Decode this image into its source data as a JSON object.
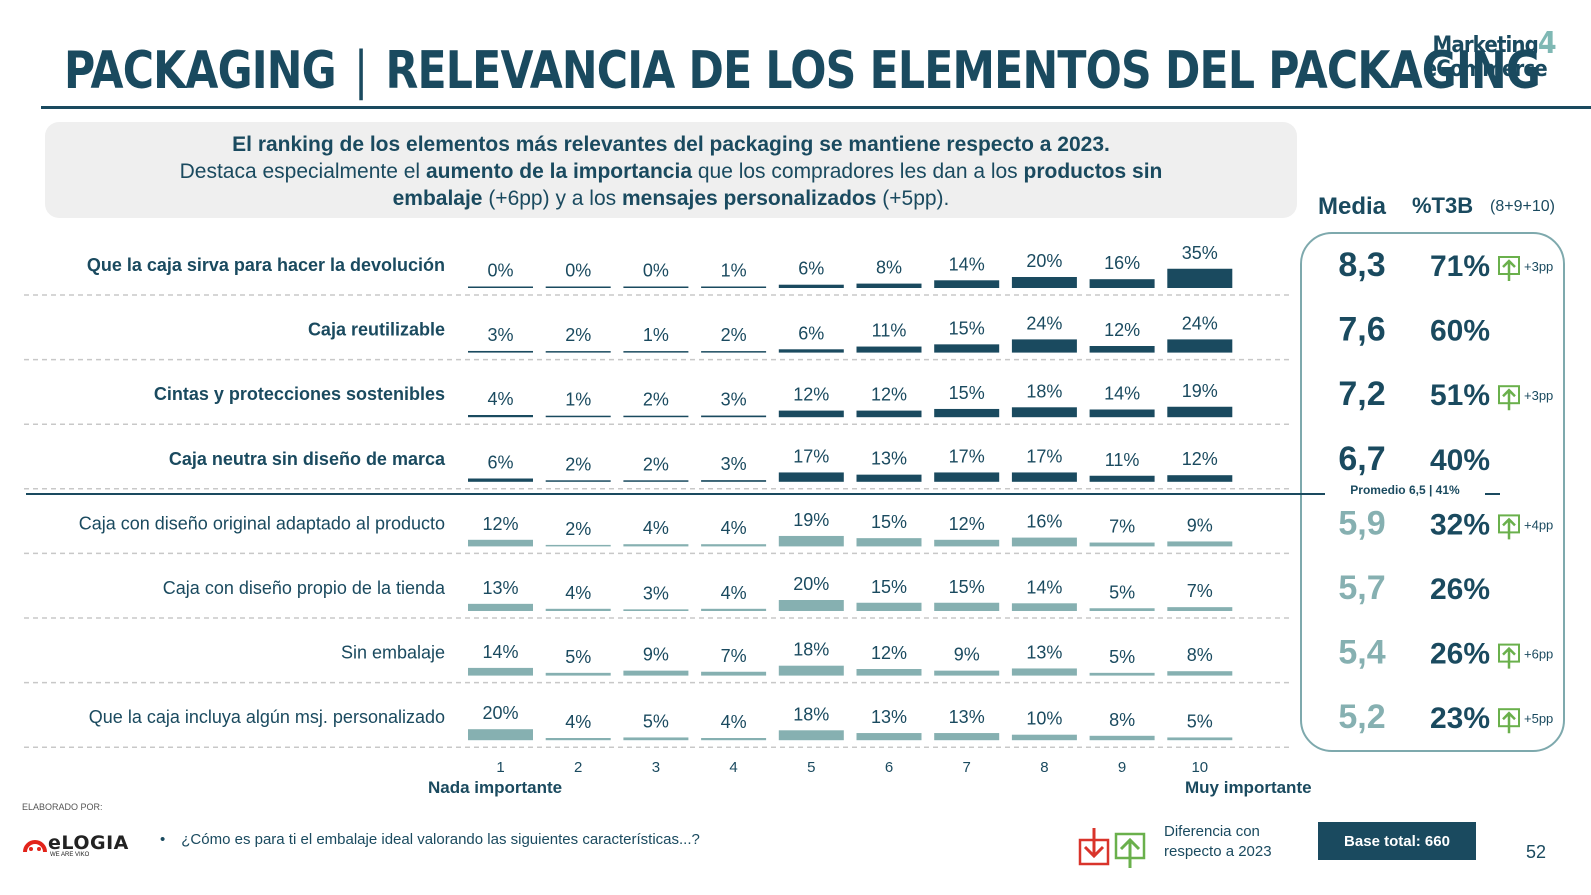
{
  "header": {
    "title_left": "PACKAGING",
    "title_sep": "|",
    "title_right": "RELEVANCIA DE LOS ELEMENTOS DEL PACKAGING",
    "logo_line1": "Marketing",
    "logo_line2": "eCommerce",
    "logo_mark": "4"
  },
  "summary": {
    "line1": "El ranking de los elementos más relevantes del packaging se mantiene respecto a 2023.",
    "line2_a": "Destaca especialmente el ",
    "line2_b": "aumento de la importancia",
    "line2_c": " que los compradores les dan a los ",
    "line2_d": "productos sin",
    "line3_a": "embalaje",
    "line3_b": " (+6pp) y a los ",
    "line3_c": "mensajes personalizados",
    "line3_d": " (+5pp)."
  },
  "columns_header": {
    "media": "Media",
    "t3b": "%T3B",
    "t3b_sub": "(8+9+10)"
  },
  "chart_data": {
    "type": "bar",
    "categories": [
      "1",
      "2",
      "3",
      "4",
      "5",
      "6",
      "7",
      "8",
      "9",
      "10"
    ],
    "series": [
      {
        "name": "Que la caja sirva para hacer la devolución",
        "values": [
          0,
          0,
          0,
          1,
          6,
          8,
          14,
          20,
          16,
          35
        ],
        "labels": [
          "0%",
          "0%",
          "0%",
          "1%",
          "6%",
          "8%",
          "14%",
          "20%",
          "16%",
          "35%"
        ],
        "media": "8,3",
        "t3b": "71%",
        "diff": "+3pp",
        "top_group": true
      },
      {
        "name": "Caja reutilizable",
        "values": [
          3,
          2,
          1,
          2,
          6,
          11,
          15,
          24,
          12,
          24
        ],
        "labels": [
          "3%",
          "2%",
          "1%",
          "2%",
          "6%",
          "11%",
          "15%",
          "24%",
          "12%",
          "24%"
        ],
        "media": "7,6",
        "t3b": "60%",
        "diff": "",
        "top_group": true
      },
      {
        "name": "Cintas y protecciones sostenibles",
        "values": [
          4,
          1,
          2,
          3,
          12,
          12,
          15,
          18,
          14,
          19
        ],
        "labels": [
          "4%",
          "1%",
          "2%",
          "3%",
          "12%",
          "12%",
          "15%",
          "18%",
          "14%",
          "19%"
        ],
        "media": "7,2",
        "t3b": "51%",
        "diff": "+3pp",
        "top_group": true
      },
      {
        "name": "Caja neutra sin diseño de marca",
        "values": [
          6,
          2,
          2,
          3,
          17,
          13,
          17,
          17,
          11,
          12
        ],
        "labels": [
          "6%",
          "2%",
          "2%",
          "3%",
          "17%",
          "13%",
          "17%",
          "17%",
          "11%",
          "12%"
        ],
        "media": "6,7",
        "t3b": "40%",
        "diff": "",
        "top_group": true
      },
      {
        "name": "Caja con diseño original adaptado al producto",
        "values": [
          12,
          2,
          4,
          4,
          19,
          15,
          12,
          16,
          7,
          9
        ],
        "labels": [
          "12%",
          "2%",
          "4%",
          "4%",
          "19%",
          "15%",
          "12%",
          "16%",
          "7%",
          "9%"
        ],
        "media": "5,9",
        "t3b": "32%",
        "diff": "+4pp",
        "top_group": false
      },
      {
        "name": "Caja con diseño propio de la tienda",
        "values": [
          13,
          4,
          3,
          4,
          20,
          15,
          15,
          14,
          5,
          7
        ],
        "labels": [
          "13%",
          "4%",
          "3%",
          "4%",
          "20%",
          "15%",
          "15%",
          "14%",
          "5%",
          "7%"
        ],
        "media": "5,7",
        "t3b": "26%",
        "diff": "",
        "top_group": false
      },
      {
        "name": "Sin embalaje",
        "values": [
          14,
          5,
          9,
          7,
          18,
          12,
          9,
          13,
          5,
          8
        ],
        "labels": [
          "14%",
          "5%",
          "9%",
          "7%",
          "18%",
          "12%",
          "9%",
          "13%",
          "5%",
          "8%"
        ],
        "media": "5,4",
        "t3b": "26%",
        "diff": "+6pp",
        "top_group": false
      },
      {
        "name": "Que la caja incluya algún msj. personalizado",
        "values": [
          20,
          4,
          5,
          4,
          18,
          13,
          13,
          10,
          8,
          5
        ],
        "labels": [
          "20%",
          "4%",
          "5%",
          "4%",
          "18%",
          "13%",
          "13%",
          "10%",
          "8%",
          "5%"
        ],
        "media": "5,2",
        "t3b": "23%",
        "diff": "+5pp",
        "top_group": false
      }
    ],
    "xlabel_left": "Nada importante",
    "xlabel_right": "Muy importante",
    "average_label": "Promedio 6,5 | 41%",
    "colors": {
      "top_group": "#1a4a5f",
      "bottom_group": "#86b0b1",
      "media_bottom": "#86b0b1",
      "arrow_up": "#6ab04c",
      "arrow_down": "#d9342b"
    }
  },
  "footer": {
    "elaborado": "ELABORADO POR:",
    "brand": "eLOGIA",
    "brand_tag": "WE ARE VIKO",
    "question": "¿Cómo es para ti el embalaje ideal valorando las siguientes características...?",
    "legend_line1": "Diferencia con",
    "legend_line2": "respecto a 2023",
    "base": "Base total: 660",
    "page": "52"
  }
}
